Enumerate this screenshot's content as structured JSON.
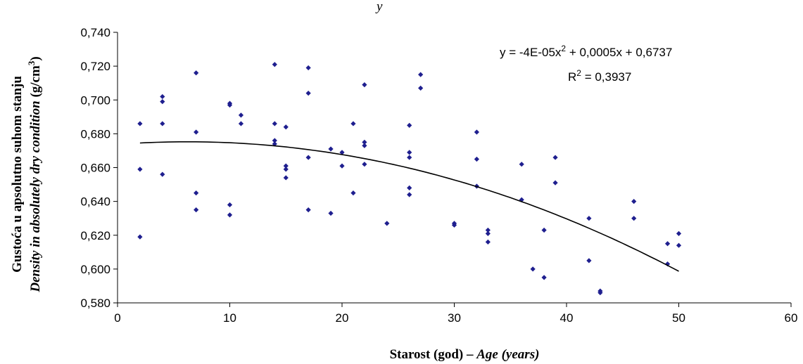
{
  "chart_data": {
    "type": "scatter",
    "title_fragment": "y",
    "xlabel": "Starost (god) – ",
    "xlabel_italic": "Age (years)",
    "ylabel_line1": "Gustoća u apsolutno suhom stanju",
    "ylabel_line2_italic": "Density in absolutely dry condition",
    "ylabel_line2_unit": " (g/cm",
    "ylabel_line2_unit_sup": "3",
    "ylabel_line2_unit_end": ")",
    "xlim": [
      0,
      60
    ],
    "ylim": [
      0.58,
      0.74
    ],
    "x_ticks": [
      "0",
      "10",
      "20",
      "30",
      "40",
      "50",
      "60"
    ],
    "y_ticks": [
      "0,580",
      "0,600",
      "0,620",
      "0,640",
      "0,660",
      "0,680",
      "0,700",
      "0,720",
      "0,740"
    ],
    "grid": false,
    "point_color": "#1f1f8f",
    "trendline": {
      "coefficients": [
        -4e-05,
        0.0005,
        0.6737
      ],
      "x_range": [
        2,
        50
      ],
      "equation_text_a": "y = -4E-05x",
      "equation_text_sup": "2",
      "equation_text_b": " + 0,0005x + 0,6737",
      "r2_text_a": "R",
      "r2_text_sup": "2",
      "r2_text_b": " = 0,3937"
    },
    "points": [
      [
        2,
        0.686
      ],
      [
        2,
        0.659
      ],
      [
        2,
        0.619
      ],
      [
        4,
        0.702
      ],
      [
        4,
        0.699
      ],
      [
        4,
        0.686
      ],
      [
        4,
        0.656
      ],
      [
        7,
        0.716
      ],
      [
        7,
        0.681
      ],
      [
        7,
        0.645
      ],
      [
        7,
        0.635
      ],
      [
        10,
        0.698
      ],
      [
        10,
        0.697
      ],
      [
        10,
        0.638
      ],
      [
        10,
        0.632
      ],
      [
        11,
        0.691
      ],
      [
        11,
        0.686
      ],
      [
        14,
        0.721
      ],
      [
        14,
        0.686
      ],
      [
        14,
        0.676
      ],
      [
        14,
        0.674
      ],
      [
        15,
        0.684
      ],
      [
        15,
        0.661
      ],
      [
        15,
        0.659
      ],
      [
        15,
        0.654
      ],
      [
        17,
        0.719
      ],
      [
        17,
        0.704
      ],
      [
        17,
        0.666
      ],
      [
        17,
        0.635
      ],
      [
        19,
        0.671
      ],
      [
        19,
        0.633
      ],
      [
        20,
        0.669
      ],
      [
        20,
        0.661
      ],
      [
        21,
        0.686
      ],
      [
        21,
        0.645
      ],
      [
        22,
        0.709
      ],
      [
        22,
        0.675
      ],
      [
        22,
        0.673
      ],
      [
        22,
        0.662
      ],
      [
        24,
        0.627
      ],
      [
        26,
        0.685
      ],
      [
        26,
        0.669
      ],
      [
        26,
        0.666
      ],
      [
        26,
        0.648
      ],
      [
        26,
        0.644
      ],
      [
        27,
        0.715
      ],
      [
        27,
        0.707
      ],
      [
        30,
        0.627
      ],
      [
        30,
        0.626
      ],
      [
        32,
        0.681
      ],
      [
        32,
        0.665
      ],
      [
        32,
        0.649
      ],
      [
        33,
        0.623
      ],
      [
        33,
        0.621
      ],
      [
        33,
        0.616
      ],
      [
        36,
        0.662
      ],
      [
        36,
        0.641
      ],
      [
        37,
        0.6
      ],
      [
        38,
        0.623
      ],
      [
        38,
        0.595
      ],
      [
        39,
        0.666
      ],
      [
        39,
        0.651
      ],
      [
        42,
        0.63
      ],
      [
        42,
        0.605
      ],
      [
        43,
        0.587
      ],
      [
        43,
        0.586
      ],
      [
        46,
        0.64
      ],
      [
        46,
        0.63
      ],
      [
        49,
        0.615
      ],
      [
        49,
        0.603
      ],
      [
        50,
        0.621
      ],
      [
        50,
        0.614
      ]
    ]
  }
}
